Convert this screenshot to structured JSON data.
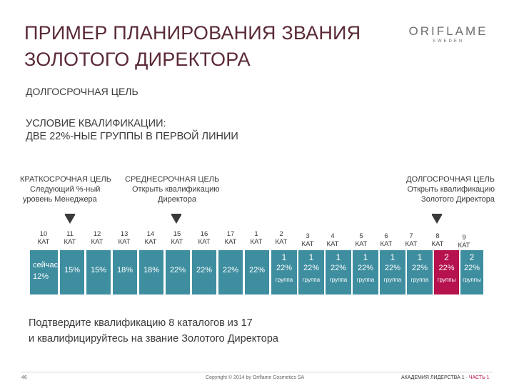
{
  "title": {
    "line1": "ПРИМЕР ПЛАНИРОВАНИЯ ЗВАНИЯ",
    "line2": "ЗОЛОТОГО ДИРЕКТОРА"
  },
  "logo": {
    "main": "ORIFLAME",
    "sub": "SWEDEN"
  },
  "subtitle": "ДОЛГОСРОЧНАЯ ЦЕЛЬ",
  "condition": {
    "line1": "УСЛОВИЕ КВАЛИФИКАЦИИ:",
    "line2": "ДВЕ 22%-НЫЕ ГРУППЫ В ПЕРВОЙ ЛИНИИ"
  },
  "goals": {
    "short": {
      "heading": "КРАТКОСРОЧНАЯ ЦЕЛЬ",
      "line1": "Следующий %-ный",
      "line2": "уровень Менеджера"
    },
    "mid": {
      "heading": "СРЕДНЕСРОЧНАЯ ЦЕЛЬ",
      "line1": "Открыть квалификацию",
      "line2": "Директора"
    },
    "long": {
      "heading": "ДОЛГОСРОЧНАЯ ЦЕЛЬ",
      "line1": "Открыть квалификацию",
      "line2": "Золотого Директора"
    }
  },
  "catalogs": [
    {
      "num": "10",
      "label": "КАТ"
    },
    {
      "num": "11",
      "label": "КАТ"
    },
    {
      "num": "12",
      "label": "КАТ"
    },
    {
      "num": "13",
      "label": "КАТ"
    },
    {
      "num": "14",
      "label": "КАТ"
    },
    {
      "num": "15",
      "label": "КАТ"
    },
    {
      "num": "16",
      "label": "КАТ"
    },
    {
      "num": "17",
      "label": "КАТ"
    },
    {
      "num": "1",
      "label": "КАТ"
    },
    {
      "num": "2",
      "label": "КАТ"
    },
    {
      "num": "3",
      "label": "КАТ"
    },
    {
      "num": "4",
      "label": "КАТ"
    },
    {
      "num": "5",
      "label": "КАТ"
    },
    {
      "num": "6",
      "label": "КАТ"
    },
    {
      "num": "7",
      "label": "КАТ"
    },
    {
      "num": "8",
      "label": "КАТ"
    },
    {
      "num": "9",
      "label": "КАТ"
    }
  ],
  "levels": {
    "first": {
      "line1": "сейчас",
      "line2": "12%"
    },
    "percents": [
      "15%",
      "15%",
      "18%",
      "18%",
      "22%",
      "22%",
      "22%",
      "22%"
    ],
    "groups": [
      {
        "num": "1",
        "pct": "22%",
        "label": "группа"
      },
      {
        "num": "1",
        "pct": "22%",
        "label": "группа"
      },
      {
        "num": "1",
        "pct": "22%",
        "label": "группа"
      },
      {
        "num": "1",
        "pct": "22%",
        "label": "группа"
      },
      {
        "num": "1",
        "pct": "22%",
        "label": "группа"
      },
      {
        "num": "1",
        "pct": "22%",
        "label": "группа"
      },
      {
        "num": "2",
        "pct": "22%",
        "label": "группы"
      },
      {
        "num": "2",
        "pct": "22%",
        "label": "группы"
      }
    ]
  },
  "note": {
    "line1": "Подтвердите квалификацию 8 каталогов из 17",
    "line2": "и квалифицируйтесь на звание Золотого Директора"
  },
  "footer": {
    "page": "46",
    "copyright": "Copyright © 2014 by Oriflame Cosmetics SA",
    "academy": "АКАДЕМИЯ ЛИДЕРСТВА 1 · ",
    "part": "ЧАСТЬ 1"
  },
  "colors": {
    "bar": "#3e8ea0",
    "highlight": "#b5124e",
    "title": "#5a2a36"
  }
}
